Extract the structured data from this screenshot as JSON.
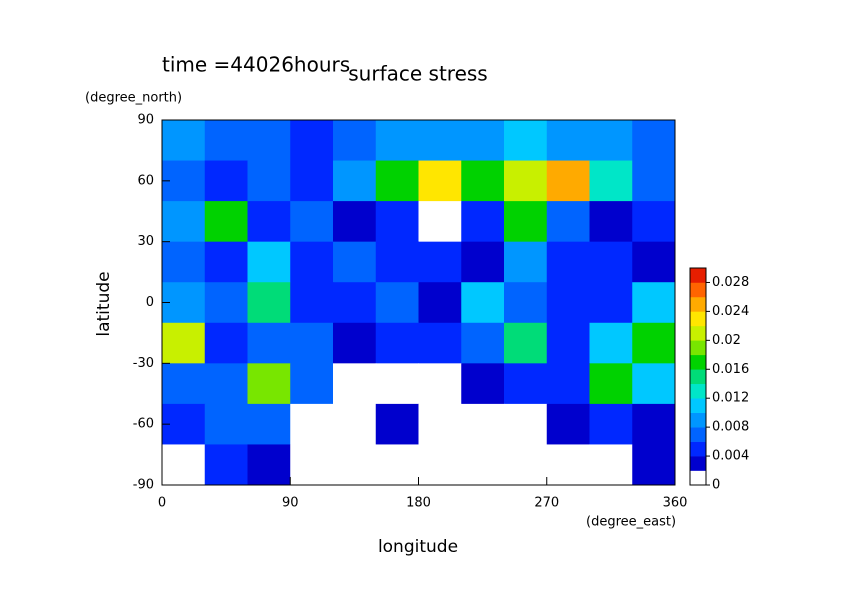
{
  "chart_data": {
    "type": "contour",
    "title": "surface stress",
    "subtitle": "time =44026hours",
    "x_label": "longitude",
    "x_unit": "(degree_east)",
    "y_label": "latitude",
    "y_unit": "(degree_north)",
    "x": [
      15,
      45,
      75,
      105,
      135,
      165,
      195,
      225,
      255,
      285,
      315,
      345
    ],
    "y": [
      80,
      60,
      40,
      20,
      0,
      -20,
      -40,
      -60,
      -80
    ],
    "z": [
      [
        0.008,
        0.006,
        0.006,
        0.004,
        0.006,
        0.008,
        0.008,
        0.008,
        0.01,
        0.008,
        0.008,
        0.006
      ],
      [
        0.006,
        0.004,
        0.006,
        0.004,
        0.008,
        0.016,
        0.022,
        0.016,
        0.02,
        0.024,
        0.012,
        0.006
      ],
      [
        0.008,
        0.016,
        0.004,
        0.006,
        0.002,
        0.004,
        0,
        0.004,
        0.016,
        0.006,
        0.002,
        0.004
      ],
      [
        0.006,
        0.004,
        0.01,
        0.004,
        0.006,
        0.004,
        0.004,
        0.002,
        0.008,
        0.004,
        0.004,
        0.002
      ],
      [
        0.008,
        0.006,
        0.014,
        0.004,
        0.004,
        0.006,
        0.002,
        0.01,
        0.006,
        0.004,
        0.004,
        0.01
      ],
      [
        0.02,
        0.004,
        0.006,
        0.006,
        0.002,
        0.004,
        0.004,
        0.006,
        0.014,
        0.004,
        0.01,
        0.016
      ],
      [
        0.006,
        0.006,
        0.018,
        0.006,
        0,
        0,
        0,
        0.002,
        0.004,
        0.004,
        0.016,
        0.01
      ],
      [
        0.004,
        0.006,
        0.006,
        0,
        0,
        0.002,
        0,
        0,
        0,
        0.002,
        0.004,
        0.002
      ],
      [
        0,
        0.004,
        0.002,
        0,
        0,
        0,
        0,
        0,
        0,
        0,
        0,
        0.002
      ]
    ],
    "xlim": [
      0,
      360
    ],
    "xticks": [
      0,
      90,
      180,
      270,
      360
    ],
    "ylim": [
      -90,
      90
    ],
    "yticks": [
      -90,
      -60,
      -30,
      0,
      30,
      60,
      90
    ],
    "levels": [
      0,
      0.002,
      0.004,
      0.006,
      0.008,
      0.01,
      0.012,
      0.014,
      0.016,
      0.018,
      0.02,
      0.022,
      0.024,
      0.026,
      0.028
    ],
    "colors": [
      "#ffffff",
      "#0000cd",
      "#0028ff",
      "#0064ff",
      "#0096ff",
      "#00c8ff",
      "#00e6c8",
      "#00dc78",
      "#00d200",
      "#78e600",
      "#c8f000",
      "#ffe600",
      "#ffaa00",
      "#ff6400",
      "#e61e00"
    ],
    "colorbar_ticks": [
      0,
      0.004,
      0.008,
      0.012,
      0.016,
      0.02,
      0.024,
      0.028
    ]
  }
}
